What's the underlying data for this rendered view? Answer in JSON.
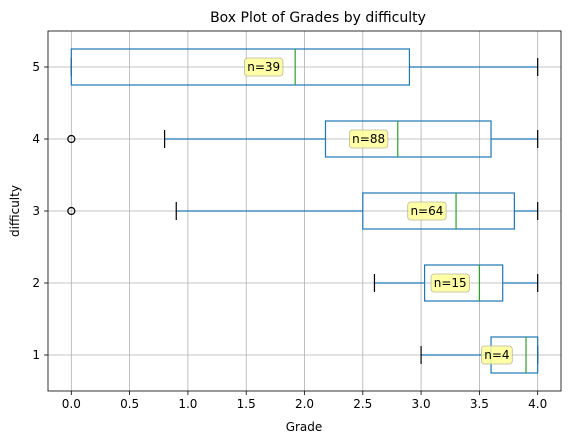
{
  "chart_data": {
    "type": "boxplot",
    "orientation": "horizontal",
    "title": "Box Plot of Grades by difficulty",
    "xlabel": "Grade",
    "ylabel": "difficulty",
    "xlim": [
      -0.2,
      4.2
    ],
    "x_ticks": [
      0.0,
      0.5,
      1.0,
      1.5,
      2.0,
      2.5,
      3.0,
      3.5,
      4.0
    ],
    "x_tick_labels": [
      "0.0",
      "0.5",
      "1.0",
      "1.5",
      "2.0",
      "2.5",
      "3.0",
      "3.5",
      "4.0"
    ],
    "grid": true,
    "box_color": "#1f77b4",
    "median_color": "#2ca02c",
    "label_bg": "#ffff99",
    "categories": [
      "1",
      "2",
      "3",
      "4",
      "5"
    ],
    "boxes": [
      {
        "category": "1",
        "whisker_low": 3.0,
        "q1": 3.6,
        "median": 3.9,
        "q3": 4.0,
        "whisker_high": 4.0,
        "outliers": [],
        "label": "n=4",
        "label_x": 3.65
      },
      {
        "category": "2",
        "whisker_low": 2.6,
        "q1": 3.03,
        "median": 3.5,
        "q3": 3.7,
        "whisker_high": 4.0,
        "outliers": [],
        "label": "n=15",
        "label_x": 3.25
      },
      {
        "category": "3",
        "whisker_low": 0.9,
        "q1": 2.5,
        "median": 3.3,
        "q3": 3.8,
        "whisker_high": 4.0,
        "outliers": [
          0.0
        ],
        "label": "n=64",
        "label_x": 3.05
      },
      {
        "category": "4",
        "whisker_low": 0.8,
        "q1": 2.18,
        "median": 2.8,
        "q3": 3.6,
        "whisker_high": 4.0,
        "outliers": [
          0.0
        ],
        "label": "n=88",
        "label_x": 2.55
      },
      {
        "category": "5",
        "whisker_low": 0.0,
        "q1": 0.0,
        "median": 1.92,
        "q3": 2.9,
        "whisker_high": 4.0,
        "outliers": [],
        "label": "n=39",
        "label_x": 1.65
      }
    ]
  }
}
